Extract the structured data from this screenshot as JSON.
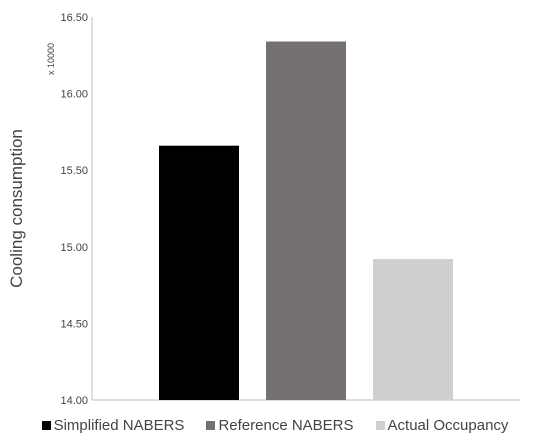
{
  "chart_data": {
    "type": "bar",
    "title": "",
    "xlabel": "",
    "ylabel": "Cooling consumption",
    "y_multiplier": "x 10000",
    "ylim": [
      14.0,
      16.5
    ],
    "yticks": [
      "14.00",
      "14.50",
      "15.00",
      "15.50",
      "16.00",
      "16.50"
    ],
    "grid": false,
    "legend_position": "bottom",
    "categories": [
      "Simplified NABERS",
      "Reference NABERS",
      "Actual Occupancy"
    ],
    "values": [
      15.66,
      16.34,
      14.92
    ],
    "colors": [
      "#000000",
      "#767171",
      "#d0cece"
    ]
  }
}
